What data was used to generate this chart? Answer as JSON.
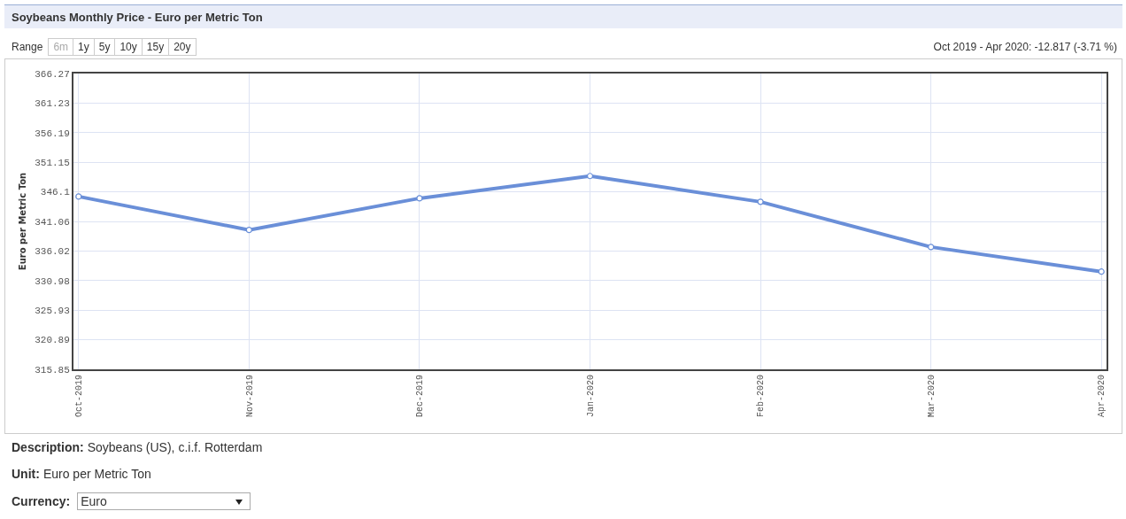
{
  "chart_data": {
    "type": "line",
    "title": "Soybeans Monthly Price - Euro per Metric Ton",
    "ylabel": "Euro per Metric Ton",
    "categories": [
      "Oct-2019",
      "Nov-2019",
      "Dec-2019",
      "Jan-2020",
      "Feb-2020",
      "Mar-2020",
      "Apr-2020"
    ],
    "series": [
      {
        "color": "#6a8fd8",
        "values": [
          345.3,
          339.6,
          345.0,
          348.8,
          344.4,
          336.7,
          332.5
        ]
      }
    ],
    "ylim": [
      315.85,
      366.27
    ],
    "yticks": [
      315.85,
      320.89,
      325.93,
      330.98,
      336.02,
      341.06,
      346.1,
      351.15,
      356.19,
      361.23,
      366.27
    ],
    "grid": true,
    "marker": "circle",
    "line_style": "solid",
    "annotations": [
      "Range",
      "6m",
      "1y",
      "5y",
      "10y",
      "15y",
      "20y",
      "Oct 2019 - Apr 2020: -12.817 (-3.71 %)",
      "Description:",
      "Soybeans (US), c.i.f. Rotterdam",
      "Unit:",
      "Euro per Metric Ton",
      "Currency:",
      "Euro"
    ]
  }
}
